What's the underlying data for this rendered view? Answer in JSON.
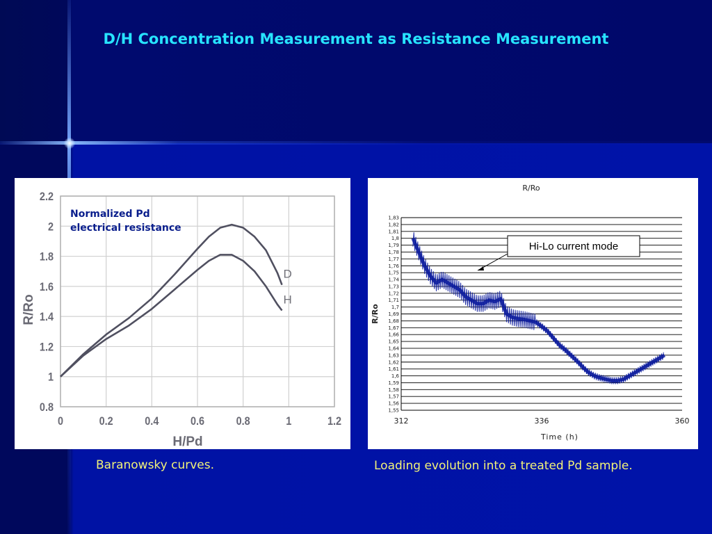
{
  "slide": {
    "title": "D/H Concentration Measurement  as Resistance Measurement",
    "caption_left": "Baranowsky curves.",
    "caption_right": "Loading evolution into a treated Pd sample."
  },
  "colors": {
    "title": "#27e4ff",
    "caption": "#f2f279",
    "curve": "#505060",
    "annotation": "#0a1e8c",
    "series": "#0a1a9c"
  },
  "chart_data": [
    {
      "type": "line",
      "annotation": "Normalized Pd\nelectrical resistance",
      "xlabel": "H/Pd",
      "ylabel": "R/Ro",
      "xlim": [
        0,
        1.2
      ],
      "ylim": [
        0.8,
        2.2
      ],
      "x_ticks": [
        "0",
        "0.2",
        "0.4",
        "0.6",
        "0.8",
        "1",
        "1.2"
      ],
      "y_ticks": [
        "0.8",
        "1",
        "1.2",
        "1.4",
        "1.6",
        "1.8",
        "2",
        "2.2"
      ],
      "grid": true,
      "series": [
        {
          "name": "D",
          "x": [
            0,
            0.1,
            0.2,
            0.3,
            0.4,
            0.5,
            0.6,
            0.65,
            0.7,
            0.75,
            0.8,
            0.85,
            0.9,
            0.95,
            0.97
          ],
          "y": [
            1.0,
            1.15,
            1.28,
            1.39,
            1.52,
            1.68,
            1.85,
            1.93,
            1.99,
            2.01,
            1.99,
            1.93,
            1.84,
            1.69,
            1.61
          ]
        },
        {
          "name": "H",
          "x": [
            0,
            0.1,
            0.2,
            0.3,
            0.4,
            0.5,
            0.6,
            0.65,
            0.7,
            0.75,
            0.8,
            0.85,
            0.9,
            0.95,
            0.97
          ],
          "y": [
            1.0,
            1.14,
            1.25,
            1.34,
            1.45,
            1.58,
            1.71,
            1.77,
            1.81,
            1.81,
            1.77,
            1.7,
            1.6,
            1.48,
            1.44
          ]
        }
      ]
    },
    {
      "type": "line",
      "title": "R/Ro",
      "xlabel": "Time (h)",
      "ylabel": "R/Ro",
      "xlim": [
        312,
        360
      ],
      "ylim": [
        1.55,
        1.83
      ],
      "x_ticks": [
        "312",
        "336",
        "360"
      ],
      "y_ticks": [
        "1,55",
        "1,56",
        "1,57",
        "1,58",
        "1,59",
        "1,6",
        "1,61",
        "1,62",
        "1,63",
        "1,64",
        "1,65",
        "1,66",
        "1,67",
        "1,68",
        "1,69",
        "1,7",
        "1,71",
        "1,72",
        "1,73",
        "1,74",
        "1,75",
        "1,76",
        "1,77",
        "1,78",
        "1,79",
        "1,8",
        "1,81",
        "1,82",
        "1,83"
      ],
      "grid": true,
      "annotation": "Hi-Lo current mode",
      "series": [
        {
          "x": [
            314,
            315,
            316,
            317,
            318,
            319,
            320,
            321,
            322,
            323,
            324,
            325,
            326,
            327,
            328,
            329,
            330,
            331,
            332,
            333,
            334,
            335,
            336,
            337,
            338,
            339,
            340,
            341,
            342,
            343,
            344,
            345,
            346,
            347,
            348,
            349,
            350,
            351,
            352,
            353,
            354,
            355,
            356,
            357
          ],
          "y": [
            1.8,
            1.78,
            1.76,
            1.745,
            1.735,
            1.74,
            1.735,
            1.73,
            1.725,
            1.715,
            1.71,
            1.705,
            1.705,
            1.71,
            1.708,
            1.712,
            1.69,
            1.685,
            1.683,
            1.682,
            1.68,
            1.678,
            1.672,
            1.665,
            1.655,
            1.645,
            1.638,
            1.63,
            1.622,
            1.613,
            1.605,
            1.6,
            1.597,
            1.595,
            1.593,
            1.593,
            1.595,
            1.6,
            1.605,
            1.61,
            1.615,
            1.62,
            1.625,
            1.63
          ]
        }
      ]
    }
  ]
}
